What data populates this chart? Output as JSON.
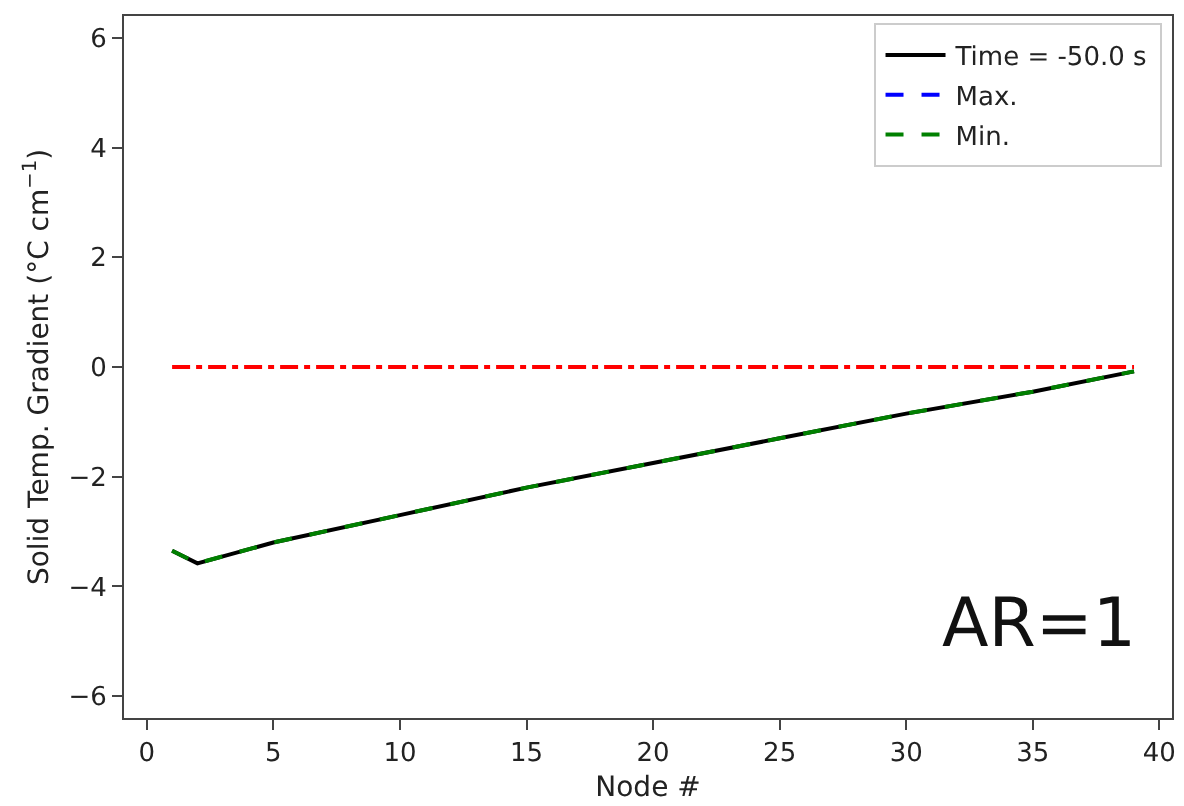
{
  "chart_data": {
    "type": "line",
    "xlabel": "Node #",
    "ylabel": "Solid Temp. Gradient (°C cm$^{−1}$)",
    "x": [
      1,
      2,
      5,
      10,
      15,
      20,
      25,
      30,
      35,
      39
    ],
    "series": [
      {
        "name": "Time = -50.0 s",
        "color": "#000000",
        "line_style": "solid",
        "values": [
          -3.35,
          -3.58,
          -3.2,
          -2.7,
          -2.2,
          -1.75,
          -1.3,
          -0.85,
          -0.45,
          -0.08
        ]
      },
      {
        "name": "Max.",
        "color": "#0000ff",
        "line_style": "dashed",
        "values": [
          null,
          null,
          null,
          null,
          null,
          null,
          null,
          null,
          null,
          null
        ]
      },
      {
        "name": "Min.",
        "color": "#008000",
        "line_style": "dashed",
        "values": [
          -3.35,
          -3.58,
          -3.2,
          -2.7,
          -2.2,
          -1.75,
          -1.3,
          -0.85,
          -0.45,
          -0.08
        ]
      },
      {
        "color": "#ff0000",
        "line_style": "dashdot",
        "x": [
          1,
          39
        ],
        "values": [
          0,
          0
        ]
      }
    ],
    "xlim": [
      -0.9,
      40.5
    ],
    "xticks": [
      0,
      5,
      10,
      15,
      20,
      25,
      30,
      35,
      40
    ],
    "ylim": [
      -6.4,
      6.4
    ],
    "yticks": [
      -6,
      -4,
      -2,
      0,
      2,
      4,
      6
    ],
    "legend": "top right",
    "marker": "none",
    "annotations": [
      "AR=1"
    ]
  }
}
